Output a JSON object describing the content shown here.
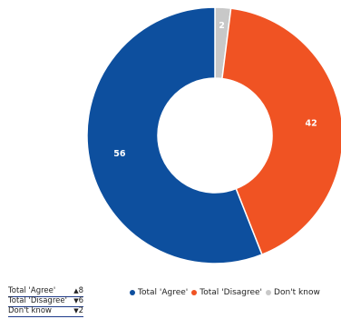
{
  "chart_data": {
    "type": "pie",
    "variant": "donut",
    "categories": [
      "Total 'Agree'",
      "Total 'Disagree'",
      "Don't know"
    ],
    "values": [
      56,
      42,
      2
    ],
    "colors": [
      "#0d4f9e",
      "#f05323",
      "#c8c8c8"
    ],
    "start_category": "Don't know",
    "direction": "clockwise",
    "legend_position": "bottom",
    "labels": [
      "56",
      "42",
      "2"
    ]
  },
  "changes": [
    {
      "label": "Total 'Agree'",
      "arrow": "▲",
      "value": "8"
    },
    {
      "label": "Total 'Disagree'",
      "arrow": "▼",
      "value": "6"
    },
    {
      "label": "Don't know",
      "arrow": "▼",
      "value": "2"
    }
  ]
}
